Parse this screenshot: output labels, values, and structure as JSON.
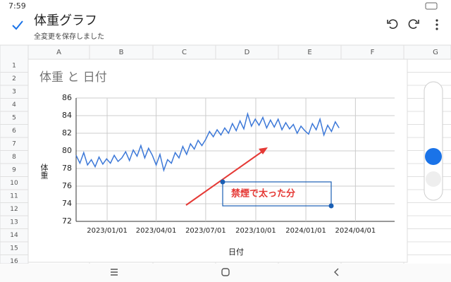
{
  "status_bar": {
    "time": "7:59"
  },
  "toolbar": {
    "title": "体重グラフ",
    "status": "全変更を保存しました"
  },
  "sheet": {
    "columns": [
      "A",
      "B",
      "C",
      "D",
      "E",
      "F",
      "G"
    ],
    "rows": [
      "1",
      "2",
      "3",
      "4",
      "5",
      "6",
      "7",
      "8",
      "9",
      "10",
      "11",
      "12",
      "13",
      "14",
      "15",
      "16"
    ]
  },
  "chart_data": {
    "type": "line",
    "title": "体重 と 日付",
    "x_label": "日付",
    "y_label": "体重",
    "x": [
      "2022/11/05",
      "2022/11/12",
      "2022/11/19",
      "2022/11/26",
      "2022/12/03",
      "2022/12/10",
      "2022/12/17",
      "2022/12/24",
      "2022/12/31",
      "2023/01/07",
      "2023/01/14",
      "2023/01/21",
      "2023/01/28",
      "2023/02/04",
      "2023/02/11",
      "2023/02/18",
      "2023/02/25",
      "2023/03/04",
      "2023/03/11",
      "2023/03/18",
      "2023/03/25",
      "2023/04/01",
      "2023/04/08",
      "2023/04/15",
      "2023/04/22",
      "2023/04/29",
      "2023/05/06",
      "2023/05/13",
      "2023/05/20",
      "2023/05/27",
      "2023/06/03",
      "2023/06/10",
      "2023/06/17",
      "2023/06/24",
      "2023/07/01",
      "2023/07/08",
      "2023/07/15",
      "2023/07/22",
      "2023/07/29",
      "2023/08/05",
      "2023/08/12",
      "2023/08/19",
      "2023/08/26",
      "2023/09/02",
      "2023/09/09",
      "2023/09/16",
      "2023/09/23",
      "2023/09/30",
      "2023/10/07",
      "2023/10/14",
      "2023/10/21",
      "2023/10/28",
      "2023/11/04",
      "2023/11/11",
      "2023/11/18",
      "2023/11/25",
      "2023/12/02",
      "2023/12/09",
      "2023/12/16",
      "2023/12/23",
      "2023/12/30",
      "2024/01/06",
      "2024/01/13",
      "2024/01/20",
      "2024/01/27",
      "2024/02/03",
      "2024/02/10",
      "2024/02/17",
      "2024/02/24",
      "2024/03/02"
    ],
    "series": [
      {
        "name": "体重",
        "color": "#3c78d8",
        "values": [
          79.5,
          78.6,
          79.8,
          78.4,
          79.0,
          78.2,
          79.3,
          78.5,
          79.1,
          78.6,
          79.5,
          78.8,
          79.2,
          79.9,
          78.9,
          80.1,
          79.4,
          80.6,
          79.2,
          80.3,
          79.5,
          78.4,
          79.6,
          77.8,
          79.0,
          78.6,
          79.8,
          79.2,
          80.5,
          79.6,
          80.8,
          80.2,
          81.2,
          80.6,
          81.3,
          82.2,
          81.6,
          82.4,
          81.8,
          82.6,
          82.0,
          83.1,
          82.3,
          83.4,
          82.5,
          84.2,
          82.8,
          83.6,
          82.9,
          83.8,
          82.6,
          83.5,
          82.7,
          83.6,
          82.4,
          83.2,
          82.5,
          83.0,
          82.0,
          82.8,
          82.3,
          81.9,
          83.1,
          82.4,
          83.6,
          81.8,
          82.9,
          82.2,
          83.3,
          82.6
        ]
      }
    ],
    "xlim": [
      "2022/11/05",
      "2024/06/12"
    ],
    "xticks": [
      "2023/01/01",
      "2023/04/01",
      "2023/07/01",
      "2023/10/01",
      "2024/01/01",
      "2024/04/01"
    ],
    "ylim": [
      72,
      86
    ],
    "yticks": [
      72,
      74,
      76,
      78,
      80,
      82,
      84,
      86
    ],
    "grid": true,
    "annotation": "禁煙で太った分"
  }
}
